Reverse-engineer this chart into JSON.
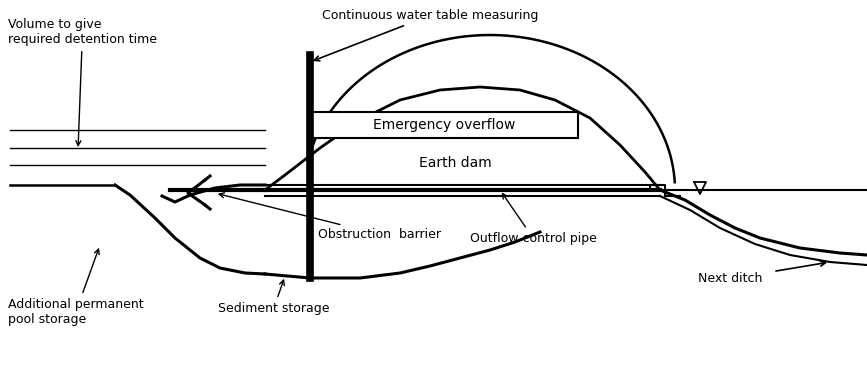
{
  "bg_color": "#ffffff",
  "line_color": "#000000",
  "text_color": "#000000",
  "figsize": [
    8.67,
    3.66
  ],
  "dpi": 100,
  "labels": {
    "volume": "Volume to give\nrequired detention time",
    "continuous": "Continuous water table measuring",
    "emergency": "Emergency overflow",
    "earth_dam": "Earth dam",
    "obstruction": "Obstruction  barrier",
    "outflow": "Outflow control pipe",
    "next_ditch": "Next ditch",
    "sediment": "Sediment storage",
    "additional": "Additional permanent\npool storage"
  }
}
